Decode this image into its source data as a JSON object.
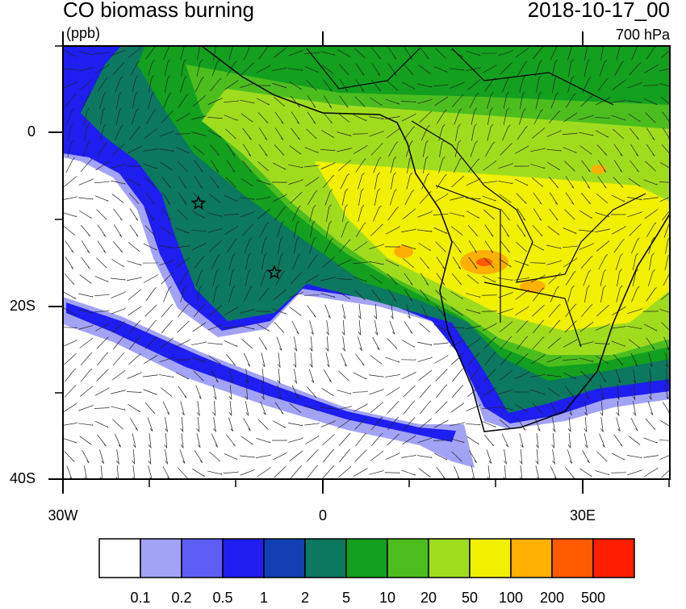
{
  "header": {
    "title": "CO biomass burning",
    "units": "(ppb)",
    "date": "2018-10-17_00",
    "level": "700 hPa"
  },
  "axes": {
    "y_labels": [
      "0",
      "20S",
      "40S"
    ],
    "x_labels": [
      "30W",
      "0",
      "30E"
    ]
  },
  "colorbar": {
    "colors": [
      "#ffffff",
      "#a3a3f5",
      "#5e5ef5",
      "#1e1ef0",
      "#1240b4",
      "#0c7860",
      "#12a01e",
      "#4bbe1e",
      "#a0dc1e",
      "#f0f000",
      "#ffb000",
      "#ff5a00",
      "#ff1e00"
    ],
    "levels": [
      0.1,
      0.2,
      0.5,
      1,
      2,
      5,
      10,
      20,
      50,
      100,
      200,
      500
    ]
  }
}
